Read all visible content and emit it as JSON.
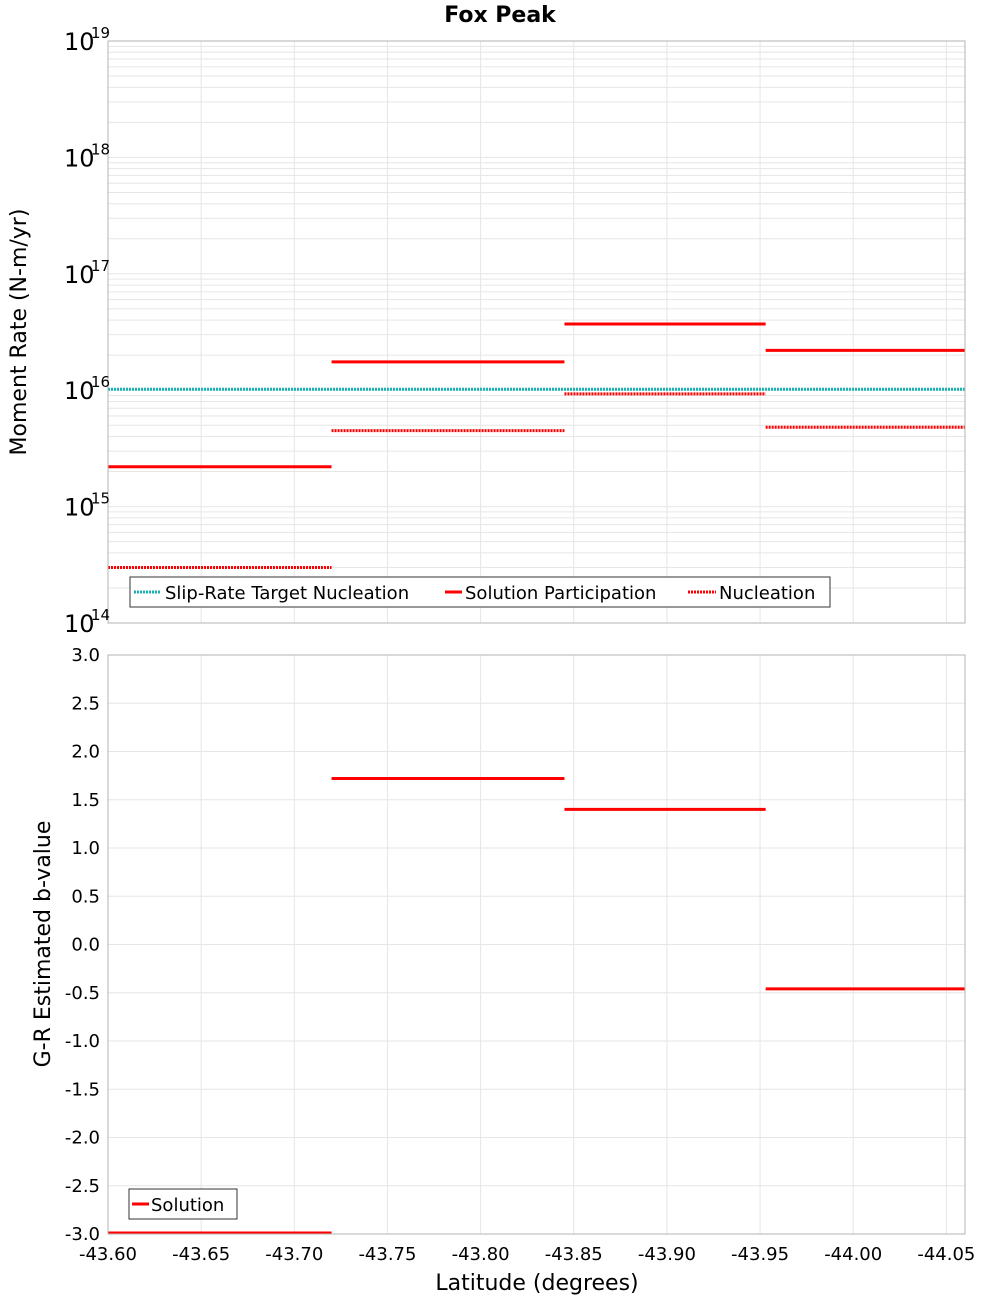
{
  "title": "Fox Peak",
  "colors": {
    "target": "#17b3b3",
    "solution": "#ff0000",
    "grid": "#e6e6e6",
    "frame": "#b3b3b3"
  },
  "chart_data": [
    {
      "type": "line",
      "panel": "top",
      "ylabel": "Moment Rate (N-m/yr)",
      "yscale": "log",
      "ylim": [
        100000000000000.0,
        1e+19
      ],
      "yticks": [
        {
          "base": "10",
          "exp": "14",
          "value": 100000000000000.0
        },
        {
          "base": "10",
          "exp": "15",
          "value": 1000000000000000.0
        },
        {
          "base": "10",
          "exp": "16",
          "value": 1e+16
        },
        {
          "base": "10",
          "exp": "17",
          "value": 1e+17
        },
        {
          "base": "10",
          "exp": "18",
          "value": 1e+18
        },
        {
          "base": "10",
          "exp": "19",
          "value": 1e+19
        }
      ],
      "xlim": [
        -43.6,
        -44.06
      ],
      "grid": true,
      "legend": {
        "position": "bottom-left",
        "entries": [
          "Slip-Rate Target Nucleation",
          "Solution Participation",
          "Nucleation"
        ]
      },
      "series": [
        {
          "name": "Slip-Rate Target Nucleation",
          "style": "dotted",
          "segments": [
            {
              "x": [
                -43.6,
                -44.06
              ],
              "y": 1.02e+16
            }
          ]
        },
        {
          "name": "Solution Participation",
          "style": "solid",
          "segments": [
            {
              "x": [
                -43.6,
                -43.72
              ],
              "y": 2200000000000000.0
            },
            {
              "x": [
                -43.72,
                -43.845
              ],
              "y": 1.75e+16
            },
            {
              "x": [
                -43.845,
                -43.953
              ],
              "y": 3.7e+16
            },
            {
              "x": [
                -43.953,
                -44.06
              ],
              "y": 2.2e+16
            }
          ]
        },
        {
          "name": "Nucleation",
          "style": "dotted",
          "segments": [
            {
              "x": [
                -43.6,
                -43.72
              ],
              "y": 300000000000000.0
            },
            {
              "x": [
                -43.72,
                -43.845
              ],
              "y": 4500000000000000.0
            },
            {
              "x": [
                -43.845,
                -43.953
              ],
              "y": 9300000000000000.0
            },
            {
              "x": [
                -43.953,
                -44.06
              ],
              "y": 4800000000000000.0
            }
          ]
        }
      ]
    },
    {
      "type": "line",
      "panel": "bottom",
      "ylabel": "G-R Estimated b-value",
      "xlabel": "Latitude (degrees)",
      "ylim": [
        -3.0,
        3.0
      ],
      "yticks": [
        "-3.0",
        "-2.5",
        "-2.0",
        "-1.5",
        "-1.0",
        "-0.5",
        "0.0",
        "0.5",
        "1.0",
        "1.5",
        "2.0",
        "2.5",
        "3.0"
      ],
      "xlim": [
        -43.6,
        -44.06
      ],
      "xticks": [
        "-43.60",
        "-43.65",
        "-43.70",
        "-43.75",
        "-43.80",
        "-43.85",
        "-43.90",
        "-43.95",
        "-44.00",
        "-44.05"
      ],
      "grid": true,
      "legend": {
        "position": "bottom-left",
        "entries": [
          "Solution"
        ]
      },
      "series": [
        {
          "name": "Solution",
          "style": "solid",
          "segments": [
            {
              "x": [
                -43.6,
                -43.72
              ],
              "y": -3.0
            },
            {
              "x": [
                -43.72,
                -43.845
              ],
              "y": 1.72
            },
            {
              "x": [
                -43.845,
                -43.953
              ],
              "y": 1.4
            },
            {
              "x": [
                -43.953,
                -44.06
              ],
              "y": -0.46
            }
          ]
        }
      ]
    }
  ]
}
